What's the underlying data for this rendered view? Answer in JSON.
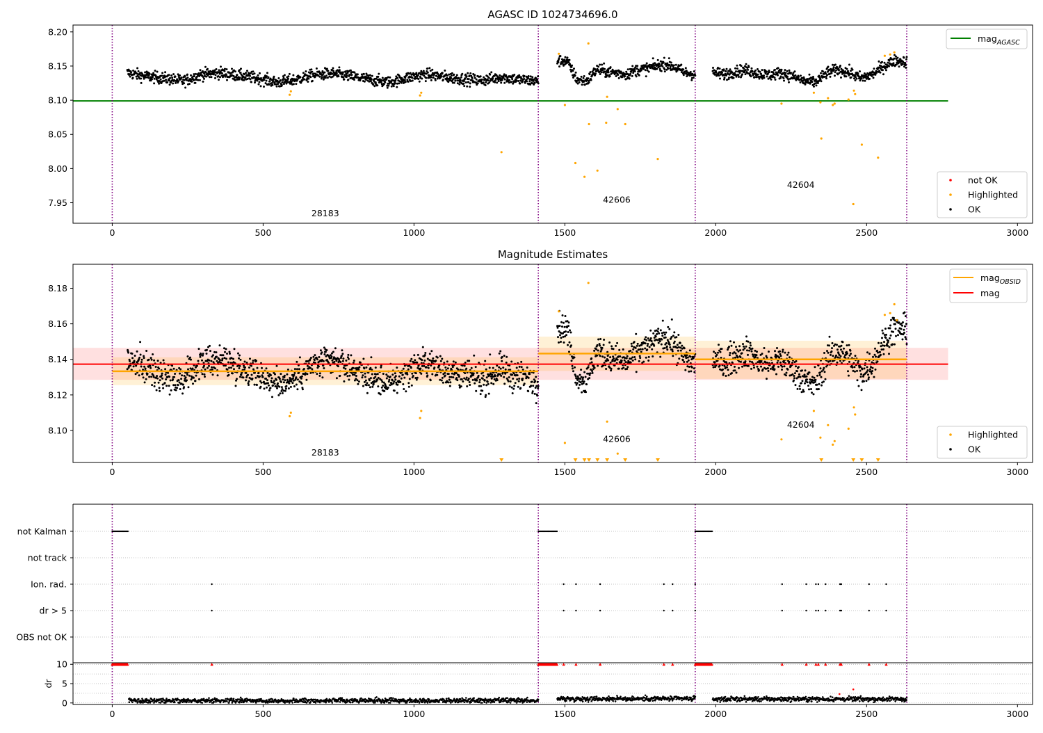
{
  "chart_data": [
    {
      "type": "scatter",
      "title": "AGASC ID 1024734696.0",
      "xlabel": "",
      "ylabel": "",
      "xlim": [
        -130,
        3050
      ],
      "ylim": [
        7.92,
        8.21
      ],
      "xticks": [
        "0",
        "500",
        "1000",
        "1500",
        "2000",
        "2500",
        "3000"
      ],
      "yticks": [
        "7.95",
        "8.00",
        "8.05",
        "8.10",
        "8.15",
        "8.20"
      ],
      "grid": false,
      "obsid_boundaries": [
        0,
        1412,
        1932,
        2633
      ],
      "obsid_labels": [
        {
          "text": "28183",
          "x": 706,
          "y": 7.93
        },
        {
          "text": "42606",
          "x": 1672,
          "y": 7.95
        },
        {
          "text": "42604",
          "x": 2282,
          "y": 7.972
        }
      ],
      "reference_lines": [
        {
          "name_main": "mag",
          "name_sub": "AGASC",
          "value": 8.099,
          "x_range": [
            -130,
            2770
          ],
          "color": "#008000"
        }
      ],
      "legend_top": {
        "placement": "top-right",
        "entries": [
          {
            "label_main": "mag",
            "label_sub": "AGASC",
            "color": "#008000"
          }
        ]
      },
      "legend_bottom": {
        "placement": "bottom-right",
        "entries": [
          {
            "label": "not OK",
            "color": "#ff0000"
          },
          {
            "label": "Highlighted",
            "color": "#ffa500"
          },
          {
            "label": "OK",
            "color": "#000000"
          }
        ]
      },
      "ok_segments": [
        {
          "x_start": 50,
          "x_end": 1412,
          "center": 8.134,
          "levels": [
            8.14,
            8.135,
            8.132,
            8.128,
            8.138,
            8.14,
            8.136,
            8.132,
            8.126,
            8.13,
            8.137,
            8.139,
            8.135,
            8.13,
            8.126,
            8.133,
            8.138,
            8.134,
            8.131,
            8.129,
            8.134,
            8.13,
            8.128
          ]
        },
        {
          "x_start": 1475,
          "x_end": 1932,
          "center": 8.142,
          "levels": [
            8.158,
            8.157,
            8.13,
            8.128,
            8.145,
            8.142,
            8.14,
            8.138,
            8.144,
            8.146,
            8.15,
            8.153,
            8.148,
            8.14,
            8.138
          ]
        },
        {
          "x_start": 1990,
          "x_end": 2633,
          "center": 8.138,
          "levels": [
            8.14,
            8.138,
            8.142,
            8.144,
            8.139,
            8.137,
            8.14,
            8.135,
            8.128,
            8.126,
            8.14,
            8.145,
            8.14,
            8.132,
            8.138,
            8.15,
            8.158,
            8.156
          ]
        }
      ],
      "highlighted_points": [
        [
          588,
          8.108
        ],
        [
          592,
          8.113
        ],
        [
          1020,
          8.107
        ],
        [
          1024,
          8.111
        ],
        [
          1290,
          8.024
        ],
        [
          1480,
          8.168
        ],
        [
          1500,
          8.093
        ],
        [
          1535,
          8.008
        ],
        [
          1565,
          7.988
        ],
        [
          1578,
          8.183
        ],
        [
          1580,
          8.065
        ],
        [
          1608,
          7.997
        ],
        [
          1637,
          8.067
        ],
        [
          1640,
          8.105
        ],
        [
          1675,
          8.087
        ],
        [
          1700,
          8.065
        ],
        [
          1808,
          8.014
        ],
        [
          2218,
          8.095
        ],
        [
          2325,
          8.111
        ],
        [
          2350,
          8.044
        ],
        [
          2347,
          8.097
        ],
        [
          2372,
          8.103
        ],
        [
          2388,
          8.093
        ],
        [
          2394,
          8.095
        ],
        [
          2440,
          8.101
        ],
        [
          2456,
          7.948
        ],
        [
          2458,
          8.114
        ],
        [
          2462,
          8.109
        ],
        [
          2484,
          8.035
        ],
        [
          2538,
          8.016
        ],
        [
          2560,
          8.165
        ],
        [
          2578,
          8.167
        ],
        [
          2592,
          8.17
        ]
      ]
    },
    {
      "type": "scatter",
      "title": "Magnitude Estimates",
      "xlabel": "",
      "ylabel": "",
      "xlim": [
        -130,
        3050
      ],
      "ylim": [
        8.082,
        8.1935
      ],
      "xticks": [
        "0",
        "500",
        "1000",
        "1500",
        "2000",
        "2500",
        "3000"
      ],
      "yticks": [
        "8.10",
        "8.12",
        "8.14",
        "8.16",
        "8.18"
      ],
      "grid": false,
      "obsid_boundaries": [
        0,
        1412,
        1932,
        2633
      ],
      "obsid_labels": [
        {
          "text": "28183",
          "x": 706,
          "y": 8.086
        },
        {
          "text": "42606",
          "x": 1672,
          "y": 8.0935
        },
        {
          "text": "42604",
          "x": 2282,
          "y": 8.1015
        }
      ],
      "mag_band": {
        "name": "mag",
        "value": 8.1373,
        "low": 8.1285,
        "high": 8.1465,
        "x_range": [
          -130,
          2770
        ],
        "color": "#ff0000",
        "fill": "#ffcccc"
      },
      "mag_obsid": [
        {
          "x_range": [
            0,
            1412
          ],
          "value": 8.1333,
          "low": 8.1255,
          "high": 8.1412
        },
        {
          "x_range": [
            1412,
            1932
          ],
          "value": 8.1433,
          "low": 8.1335,
          "high": 8.1528
        },
        {
          "x_range": [
            1932,
            2633
          ],
          "value": 8.14,
          "low": 8.129,
          "high": 8.1505
        }
      ],
      "legend_top": {
        "placement": "top-right",
        "entries": [
          {
            "label_main": "mag",
            "label_sub": "OBSID",
            "color": "#ffa500"
          },
          {
            "label_main": "mag",
            "label_sub": "",
            "color": "#ff0000"
          }
        ]
      },
      "legend_bottom": {
        "placement": "bottom-right",
        "entries": [
          {
            "label": "Highlighted",
            "color": "#ffa500"
          },
          {
            "label": "OK",
            "color": "#000000"
          }
        ]
      },
      "clipped_markers_x": [
        1290,
        1535,
        1565,
        1580,
        1608,
        1640,
        1700,
        1808,
        2350,
        2456,
        2484,
        2538
      ],
      "highlighted_points": [
        [
          588,
          8.108
        ],
        [
          592,
          8.11
        ],
        [
          1020,
          8.107
        ],
        [
          1024,
          8.111
        ],
        [
          1480,
          8.167
        ],
        [
          1500,
          8.093
        ],
        [
          1578,
          8.183
        ],
        [
          1640,
          8.105
        ],
        [
          1675,
          8.087
        ],
        [
          2218,
          8.095
        ],
        [
          2325,
          8.111
        ],
        [
          2347,
          8.096
        ],
        [
          2372,
          8.103
        ],
        [
          2388,
          8.092
        ],
        [
          2394,
          8.094
        ],
        [
          2440,
          8.101
        ],
        [
          2458,
          8.113
        ],
        [
          2462,
          8.109
        ],
        [
          2560,
          8.165
        ],
        [
          2578,
          8.166
        ],
        [
          2592,
          8.171
        ],
        [
          2600,
          8.162
        ]
      ]
    },
    {
      "type": "scatter",
      "title": "",
      "xlabel": "",
      "ylabel": "",
      "xlim": [
        -130,
        3050
      ],
      "xticks": [
        "0",
        "500",
        "1000",
        "1500",
        "2000",
        "2500",
        "3000"
      ],
      "grid": true,
      "obsid_boundaries": [
        0,
        1412,
        1932,
        2633
      ],
      "flag_rows": [
        "not Kalman",
        "not track",
        "Ion. rad.",
        "dr > 5",
        "OBS not OK"
      ],
      "flag_points": {
        "not Kalman": [
          [
            0,
            52
          ],
          [
            1412,
            1475
          ],
          [
            1932,
            1988
          ]
        ],
        "Ion. rad.": [
          330,
          1496,
          1537,
          1617,
          1828,
          1857,
          1932,
          2220,
          2300,
          2332,
          2340,
          2364,
          2412,
          2416,
          2508,
          2565
        ],
        "dr > 5": [
          330,
          1496,
          1537,
          1617,
          1828,
          1857,
          1932,
          2220,
          2300,
          2332,
          2340,
          2364,
          2412,
          2416,
          2508,
          2565
        ]
      }
    },
    {
      "type": "scatter",
      "title": "",
      "xlabel": "",
      "ylabel": "dr",
      "xlim": [
        -130,
        3050
      ],
      "ylim": [
        -0.4,
        10.4
      ],
      "xticks": [
        "0",
        "500",
        "1000",
        "1500",
        "2000",
        "2500",
        "3000"
      ],
      "yticks": [
        "0",
        "5",
        "10"
      ],
      "grid": true,
      "obsid_boundaries": [
        0,
        1412,
        1932,
        2633
      ],
      "clipped_at": 10,
      "not_ok_clipped_x": {
        "ranges": [
          [
            0,
            52
          ],
          [
            1412,
            1475
          ],
          [
            1932,
            1988
          ]
        ],
        "points": [
          330,
          1496,
          1537,
          1617,
          1828,
          1857,
          2220,
          2300,
          2332,
          2340,
          2364,
          2412,
          2416,
          2508,
          2565
        ]
      },
      "dr_ok_segments": [
        {
          "x_start": 55,
          "x_end": 1412,
          "mean": 0.6
        },
        {
          "x_start": 1475,
          "x_end": 1932,
          "mean": 1.1
        },
        {
          "x_start": 1990,
          "x_end": 2633,
          "mean": 1.0
        }
      ],
      "dr_highlighted_points": [
        [
          2456,
          3.5
        ],
        [
          2410,
          2.3
        ]
      ]
    }
  ]
}
